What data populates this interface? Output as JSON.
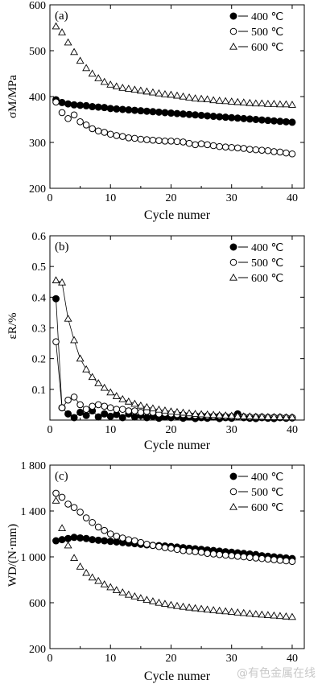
{
  "chart_data": [
    {
      "type": "scatter",
      "panel_label": "(a)",
      "xlabel": "Cycle numer",
      "ylabel": "σM/MPa",
      "xlim": [
        0,
        42
      ],
      "ylim": [
        200,
        600
      ],
      "xticks": [
        0,
        10,
        20,
        30,
        40
      ],
      "yticks": [
        200,
        300,
        400,
        500,
        600
      ],
      "legend_position": "top-right",
      "lines": false,
      "series": [
        {
          "name": "400 ℃",
          "marker": "filled-circle",
          "x": [
            1,
            2,
            3,
            4,
            5,
            6,
            7,
            8,
            9,
            10,
            11,
            12,
            13,
            14,
            15,
            16,
            17,
            18,
            19,
            20,
            21,
            22,
            23,
            24,
            25,
            26,
            27,
            28,
            29,
            30,
            31,
            32,
            33,
            34,
            35,
            36,
            37,
            38,
            39,
            40
          ],
          "y": [
            393,
            387,
            384,
            382,
            381,
            380,
            378,
            377,
            376,
            374,
            373,
            372,
            371,
            370,
            369,
            368,
            367,
            366,
            365,
            364,
            363,
            362,
            361,
            360,
            359,
            358,
            357,
            356,
            355,
            354,
            353,
            352,
            351,
            350,
            349,
            348,
            347,
            346,
            345,
            344
          ]
        },
        {
          "name": "500 ℃",
          "marker": "open-circle",
          "x": [
            1,
            2,
            3,
            4,
            5,
            6,
            7,
            8,
            9,
            10,
            11,
            12,
            13,
            14,
            15,
            16,
            17,
            18,
            19,
            20,
            21,
            22,
            23,
            24,
            25,
            26,
            27,
            28,
            29,
            30,
            31,
            32,
            33,
            34,
            35,
            36,
            37,
            38,
            39,
            40
          ],
          "y": [
            388,
            365,
            352,
            360,
            345,
            338,
            330,
            325,
            322,
            318,
            315,
            313,
            310,
            309,
            307,
            306,
            305,
            304,
            303,
            303,
            302,
            301,
            298,
            295,
            297,
            295,
            293,
            291,
            290,
            289,
            288,
            287,
            285,
            284,
            283,
            282,
            280,
            279,
            277,
            275
          ]
        },
        {
          "name": "600 ℃",
          "marker": "open-triangle",
          "x": [
            1,
            2,
            3,
            4,
            5,
            6,
            7,
            8,
            9,
            10,
            11,
            12,
            13,
            14,
            15,
            16,
            17,
            18,
            19,
            20,
            21,
            22,
            23,
            24,
            25,
            26,
            27,
            28,
            29,
            30,
            31,
            32,
            33,
            34,
            35,
            36,
            37,
            38,
            39,
            40
          ],
          "y": [
            553,
            540,
            518,
            497,
            478,
            462,
            450,
            440,
            432,
            426,
            422,
            419,
            417,
            415,
            413,
            411,
            409,
            407,
            405,
            404,
            402,
            400,
            398,
            396,
            395,
            394,
            392,
            391,
            390,
            389,
            388,
            387,
            386,
            385,
            385,
            384,
            384,
            383,
            383,
            382
          ]
        }
      ]
    },
    {
      "type": "line",
      "panel_label": "(b)",
      "xlabel": "Cycle numer",
      "ylabel": "εR/%",
      "xlim": [
        0,
        42
      ],
      "ylim": [
        0,
        0.6
      ],
      "xticks": [
        0,
        10,
        20,
        30,
        40
      ],
      "yticks": [
        0.1,
        0.2,
        0.3,
        0.4,
        0.5,
        0.6
      ],
      "legend_position": "top-right",
      "lines": true,
      "series": [
        {
          "name": "400 ℃",
          "marker": "filled-circle",
          "x": [
            1,
            2,
            3,
            4,
            5,
            6,
            7,
            8,
            9,
            10,
            11,
            12,
            13,
            14,
            15,
            16,
            17,
            18,
            19,
            20,
            21,
            22,
            23,
            24,
            25,
            26,
            27,
            28,
            29,
            30,
            31,
            32,
            33,
            34,
            35,
            36,
            37,
            38,
            39,
            40
          ],
          "y": [
            0.395,
            0.04,
            0.02,
            0.008,
            0.025,
            0.015,
            0.03,
            0.01,
            0.02,
            0.012,
            0.018,
            0.008,
            0.02,
            0.01,
            0.015,
            0.008,
            0.012,
            0.006,
            0.01,
            0.008,
            0.012,
            0.006,
            0.01,
            0.005,
            0.008,
            0.006,
            0.01,
            0.005,
            0.008,
            0.006,
            0.02,
            0.008,
            0.006,
            0.005,
            0.008,
            0.006,
            0.005,
            0.008,
            0.006,
            0.007
          ]
        },
        {
          "name": "500 ℃",
          "marker": "open-circle",
          "x": [
            1,
            2,
            3,
            4,
            5,
            6,
            7,
            8,
            9,
            10,
            11,
            12,
            13,
            14,
            15,
            16,
            17,
            18,
            19,
            20,
            21,
            22,
            23,
            24,
            25,
            26,
            27,
            28,
            29,
            30,
            31,
            32,
            33,
            34,
            35,
            36,
            37,
            38,
            39,
            40
          ],
          "y": [
            0.255,
            0.04,
            0.065,
            0.075,
            0.05,
            0.035,
            0.045,
            0.05,
            0.045,
            0.04,
            0.035,
            0.035,
            0.03,
            0.03,
            0.025,
            0.028,
            0.025,
            0.02,
            0.022,
            0.02,
            0.018,
            0.018,
            0.016,
            0.015,
            0.015,
            0.014,
            0.013,
            0.013,
            0.012,
            0.012,
            0.011,
            0.011,
            0.01,
            0.01,
            0.01,
            0.009,
            0.009,
            0.009,
            0.008,
            0.008
          ]
        },
        {
          "name": "600 ℃",
          "marker": "open-triangle",
          "x": [
            1,
            2,
            3,
            4,
            5,
            6,
            7,
            8,
            9,
            10,
            11,
            12,
            13,
            14,
            15,
            16,
            17,
            18,
            19,
            20,
            21,
            22,
            23,
            24,
            25,
            26,
            27,
            28,
            29,
            30,
            31,
            32,
            33,
            34,
            35,
            36,
            37,
            38,
            39,
            40
          ],
          "y": [
            0.455,
            0.448,
            0.33,
            0.26,
            0.2,
            0.165,
            0.14,
            0.12,
            0.105,
            0.09,
            0.078,
            0.068,
            0.06,
            0.053,
            0.047,
            0.042,
            0.038,
            0.034,
            0.031,
            0.028,
            0.026,
            0.024,
            0.022,
            0.02,
            0.019,
            0.018,
            0.017,
            0.016,
            0.015,
            0.014,
            0.013,
            0.012,
            0.012,
            0.011,
            0.011,
            0.01,
            0.01,
            0.01,
            0.009,
            0.009
          ]
        }
      ]
    },
    {
      "type": "scatter",
      "panel_label": "(c)",
      "xlabel": "Cycle numer",
      "ylabel": "WD/(N·mm)",
      "xlim": [
        0,
        42
      ],
      "ylim": [
        200,
        1800
      ],
      "xticks": [
        0,
        10,
        20,
        30,
        40
      ],
      "yticks": [
        200,
        600,
        1000,
        1400,
        1800
      ],
      "legend_position": "top-right",
      "lines": false,
      "series": [
        {
          "name": "400 ℃",
          "marker": "filled-circle",
          "x": [
            1,
            2,
            3,
            4,
            5,
            6,
            7,
            8,
            9,
            10,
            11,
            12,
            13,
            14,
            15,
            16,
            17,
            18,
            19,
            20,
            21,
            22,
            23,
            24,
            25,
            26,
            27,
            28,
            29,
            30,
            31,
            32,
            33,
            34,
            35,
            36,
            37,
            38,
            39,
            40
          ],
          "y": [
            1140,
            1150,
            1160,
            1170,
            1165,
            1160,
            1150,
            1145,
            1140,
            1135,
            1130,
            1125,
            1120,
            1115,
            1110,
            1105,
            1100,
            1098,
            1095,
            1090,
            1085,
            1080,
            1075,
            1070,
            1065,
            1060,
            1055,
            1050,
            1045,
            1040,
            1035,
            1030,
            1025,
            1020,
            1010,
            1005,
            1000,
            995,
            990,
            985
          ]
        },
        {
          "name": "500 ℃",
          "marker": "open-circle",
          "x": [
            1,
            2,
            3,
            4,
            5,
            6,
            7,
            8,
            9,
            10,
            11,
            12,
            13,
            14,
            15,
            16,
            17,
            18,
            19,
            20,
            21,
            22,
            23,
            24,
            25,
            26,
            27,
            28,
            29,
            30,
            31,
            32,
            33,
            34,
            35,
            36,
            37,
            38,
            39,
            40
          ],
          "y": [
            1555,
            1520,
            1460,
            1430,
            1390,
            1340,
            1300,
            1260,
            1230,
            1200,
            1180,
            1165,
            1150,
            1140,
            1125,
            1110,
            1100,
            1090,
            1080,
            1075,
            1065,
            1055,
            1050,
            1045,
            1040,
            1030,
            1025,
            1020,
            1015,
            1010,
            1005,
            1000,
            995,
            990,
            985,
            980,
            975,
            970,
            965,
            960
          ]
        },
        {
          "name": "600 ℃",
          "marker": "open-triangle",
          "x": [
            1,
            2,
            3,
            4,
            5,
            6,
            7,
            8,
            9,
            10,
            11,
            12,
            13,
            14,
            15,
            16,
            17,
            18,
            19,
            20,
            21,
            22,
            23,
            24,
            25,
            26,
            27,
            28,
            29,
            30,
            31,
            32,
            33,
            34,
            35,
            36,
            37,
            38,
            39,
            40
          ],
          "y": [
            1490,
            1250,
            1100,
            990,
            915,
            860,
            820,
            790,
            760,
            735,
            710,
            690,
            670,
            655,
            640,
            625,
            612,
            600,
            590,
            580,
            572,
            565,
            558,
            552,
            546,
            540,
            535,
            530,
            525,
            520,
            515,
            510,
            505,
            500,
            496,
            492,
            488,
            484,
            480,
            476
          ]
        }
      ]
    }
  ],
  "watermark": "@有色金属在线"
}
